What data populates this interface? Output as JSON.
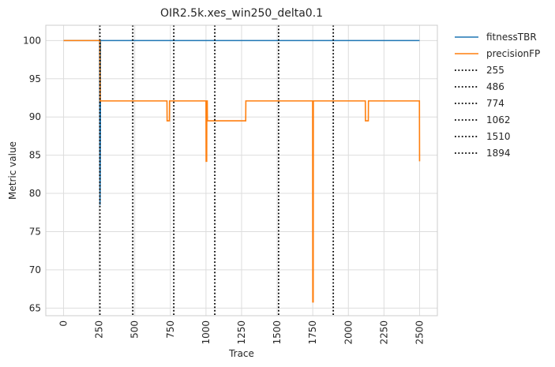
{
  "chart_data": {
    "type": "line",
    "title": "OIR2.5k.xes_win250_delta0.1",
    "xlabel": "Trace",
    "ylabel": "Metric value",
    "xlim": [
      -125,
      2625
    ],
    "ylim": [
      64,
      102
    ],
    "xticks": [
      0,
      250,
      500,
      750,
      1000,
      1250,
      1500,
      1750,
      2000,
      2250,
      2500
    ],
    "yticks": [
      65,
      70,
      75,
      80,
      85,
      90,
      95,
      100
    ],
    "grid": true,
    "legend_position": "outside-right",
    "series": [
      {
        "name": "fitnessTBR",
        "color": "#1f77b4",
        "style": "solid",
        "x": [
          0,
          254,
          255,
          255,
          256,
          256,
          257,
          258,
          259,
          2500
        ],
        "y": [
          100,
          100,
          91,
          86,
          81,
          78.5,
          82,
          88,
          100,
          100
        ]
      },
      {
        "name": "precisionFP",
        "color": "#ff7f0e",
        "style": "solid",
        "x": [
          0,
          255,
          257,
          726,
          727,
          743,
          744,
          1000,
          1001,
          1005,
          1006,
          1009,
          1010,
          1279,
          1280,
          1749,
          1750,
          1753,
          1754,
          2119,
          2120,
          2140,
          2141,
          2499,
          2500
        ],
        "y": [
          100,
          100,
          92.1,
          92.1,
          89.5,
          89.5,
          92.1,
          92.1,
          84.2,
          84.2,
          92.1,
          92.1,
          89.5,
          89.5,
          92.1,
          92.1,
          65.8,
          65.8,
          92.1,
          92.1,
          89.5,
          89.5,
          92.1,
          92.1,
          84.2
        ]
      }
    ],
    "vlines": [
      {
        "name": "255",
        "x": 255,
        "color": "#000000",
        "style": "dotted"
      },
      {
        "name": "486",
        "x": 486,
        "color": "#000000",
        "style": "dotted"
      },
      {
        "name": "774",
        "x": 774,
        "color": "#000000",
        "style": "dotted"
      },
      {
        "name": "1062",
        "x": 1062,
        "color": "#000000",
        "style": "dotted"
      },
      {
        "name": "1510",
        "x": 1510,
        "color": "#000000",
        "style": "dotted"
      },
      {
        "name": "1894",
        "x": 1894,
        "color": "#000000",
        "style": "dotted"
      }
    ]
  }
}
